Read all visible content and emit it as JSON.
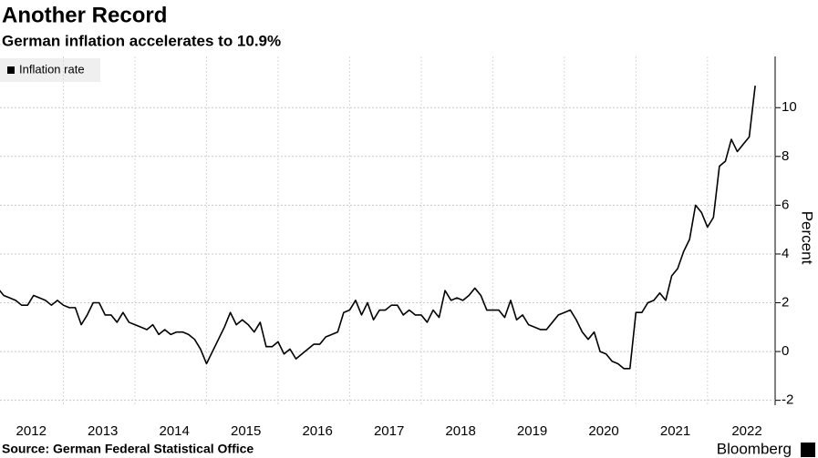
{
  "chart_data": {
    "type": "line",
    "title": "Another Record",
    "subtitle": "German inflation accelerates to 10.9%",
    "y_label": "Percent",
    "source": "Source: German Federal Statistical Office",
    "brand": "Bloomberg",
    "categories": [
      null,
      null,
      null,
      null,
      null,
      null,
      "2012",
      null,
      null,
      null,
      null,
      null,
      null,
      null,
      null,
      null,
      null,
      null,
      "2013",
      null,
      null,
      null,
      null,
      null,
      null,
      null,
      null,
      null,
      null,
      null,
      "2014",
      null,
      null,
      null,
      null,
      null,
      null,
      null,
      null,
      null,
      null,
      null,
      "2015",
      null,
      null,
      null,
      null,
      null,
      null,
      null,
      null,
      null,
      null,
      null,
      "2016",
      null,
      null,
      null,
      null,
      null,
      null,
      null,
      null,
      null,
      null,
      null,
      "2017",
      null,
      null,
      null,
      null,
      null,
      null,
      null,
      null,
      null,
      null,
      null,
      "2018",
      null,
      null,
      null,
      null,
      null,
      null,
      null,
      null,
      null,
      null,
      null,
      "2019",
      null,
      null,
      null,
      null,
      null,
      null,
      null,
      null,
      null,
      null,
      null,
      "2020",
      null,
      null,
      null,
      null,
      null,
      null,
      null,
      null,
      null,
      null,
      null,
      "2021",
      null,
      null,
      null,
      null,
      null,
      null,
      null,
      null,
      null,
      null,
      null,
      "2022",
      null,
      null
    ],
    "series": [
      {
        "name": "Inflation rate",
        "color": "#000000",
        "values": [
          2.5,
          2.6,
          2.3,
          2.2,
          2.1,
          1.9,
          1.9,
          2.3,
          2.2,
          2.1,
          1.9,
          2.1,
          1.9,
          1.8,
          1.8,
          1.1,
          1.5,
          2.0,
          2.0,
          1.5,
          1.5,
          1.2,
          1.6,
          1.2,
          1.1,
          1.0,
          0.9,
          1.1,
          0.7,
          0.9,
          0.7,
          0.8,
          0.8,
          0.7,
          0.5,
          0.1,
          -0.5,
          0.0,
          0.5,
          1.0,
          1.6,
          1.1,
          1.3,
          1.1,
          0.8,
          1.2,
          0.2,
          0.2,
          0.4,
          -0.1,
          0.1,
          -0.3,
          -0.1,
          0.1,
          0.3,
          0.3,
          0.6,
          0.7,
          0.8,
          1.6,
          1.7,
          2.1,
          1.5,
          2.0,
          1.3,
          1.7,
          1.7,
          1.9,
          1.9,
          1.5,
          1.7,
          1.5,
          1.5,
          1.2,
          1.7,
          1.4,
          2.5,
          2.1,
          2.2,
          2.1,
          2.3,
          2.6,
          2.3,
          1.7,
          1.7,
          1.7,
          1.4,
          2.1,
          1.3,
          1.5,
          1.1,
          1.0,
          0.9,
          0.9,
          1.2,
          1.5,
          1.6,
          1.7,
          1.3,
          0.8,
          0.5,
          0.8,
          0.0,
          -0.1,
          -0.4,
          -0.5,
          -0.7,
          -0.7,
          1.6,
          1.6,
          2.0,
          2.1,
          2.4,
          2.1,
          3.1,
          3.4,
          4.1,
          4.6,
          6.0,
          5.7,
          5.1,
          5.5,
          7.6,
          7.8,
          8.7,
          8.2,
          8.5,
          8.8,
          10.9
        ]
      }
    ],
    "ylim": [
      -2.2,
      12.1
    ],
    "yticks": [
      -2,
      0,
      2,
      4,
      6,
      8,
      10
    ],
    "grid": true,
    "legend": "top-left"
  }
}
